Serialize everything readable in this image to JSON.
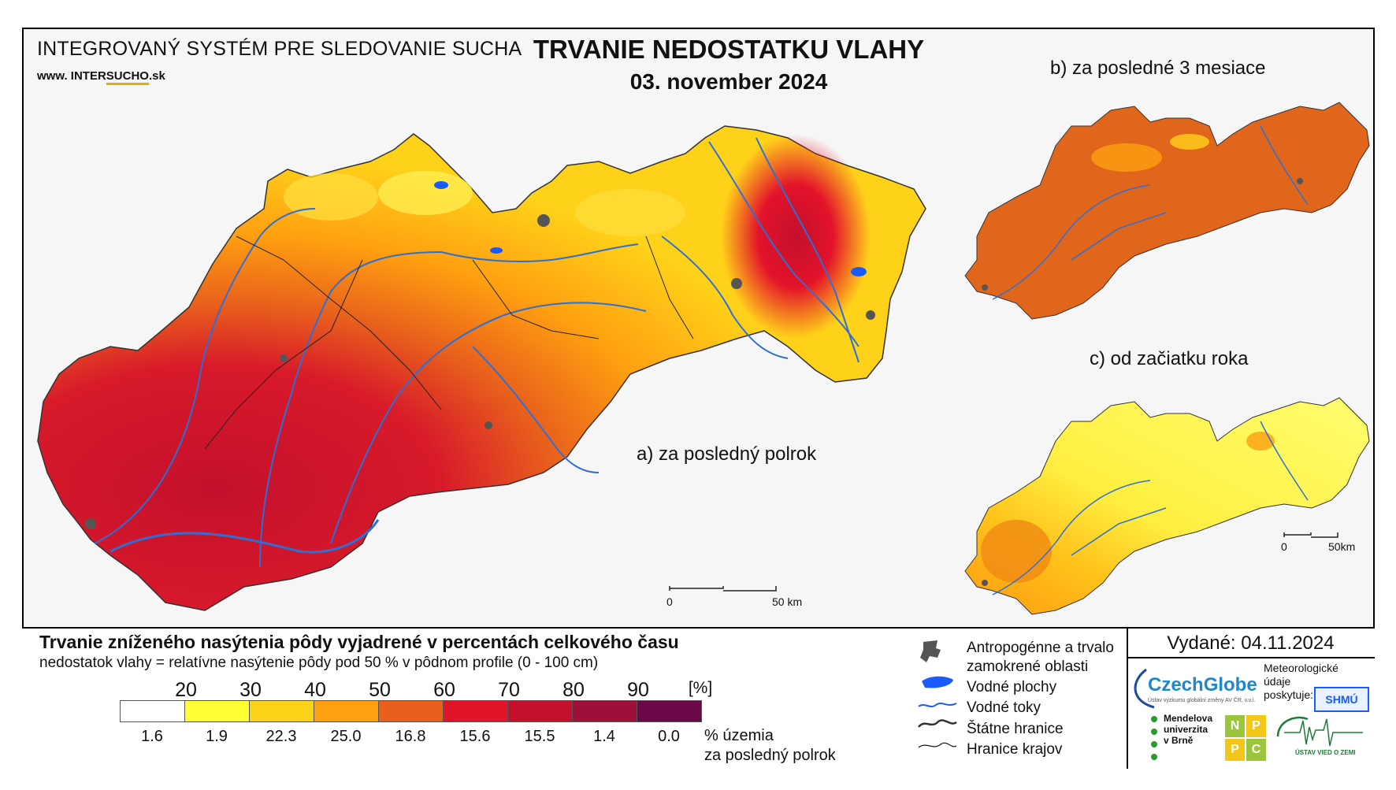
{
  "header": {
    "system_title": "INTEGROVANÝ SYSTÉM PRE SLEDOVANIE SUCHA",
    "website_prefix": "www.",
    "website_name_a": "INTER",
    "website_name_b": "SUCHO",
    "website_suffix": ".sk",
    "map_title": "TRVANIE NEDOSTATKU VLAHY",
    "map_date": "03. november 2024"
  },
  "panels": {
    "a_label": "a) za posledný polrok",
    "b_label": "b) za posledné 3 mesiace",
    "c_label": "c) od začiatku roka"
  },
  "scalebars": {
    "main_start": "0",
    "main_end": "50 km",
    "small_start": "0",
    "small_end": "50km"
  },
  "legend": {
    "title": "Trvanie zníženého nasýtenia pôdy vyjadrené v percentách celkového času",
    "subtitle": "nedostatok vlahy = relatívne nasýtenie pôdy pod 50 % v pôdnom profile (0 - 100 cm)",
    "thresholds": [
      "20",
      "30",
      "40",
      "50",
      "60",
      "70",
      "80",
      "90",
      "[%]"
    ],
    "classes": [
      {
        "color": "#ffffff",
        "share": "1.6"
      },
      {
        "color": "#ffff33",
        "share": "1.9"
      },
      {
        "color": "#ffd21a",
        "share": "22.3"
      },
      {
        "color": "#ffa010",
        "share": "25.0"
      },
      {
        "color": "#e8601c",
        "share": "16.8"
      },
      {
        "color": "#e3132a",
        "share": "15.6"
      },
      {
        "color": "#c4102c",
        "share": "15.5"
      },
      {
        "color": "#9e0f39",
        "share": "1.4"
      },
      {
        "color": "#6a0848",
        "share": "0.0"
      }
    ],
    "share_note_line1": "% územia",
    "share_note_line2": "za posledný polrok"
  },
  "symbols": {
    "anthropogenic_1": "Antropogénne a trvalo",
    "anthropogenic_2": "zamokrené oblasti",
    "water_bodies": "Vodné plochy",
    "rivers": "Vodné toky",
    "state_border": "Štátne hranice",
    "region_border": "Hranice krajov"
  },
  "issued": "Vydané: 04.11.2024",
  "credits": {
    "czechglobe": "CzechGlobe",
    "czechglobe_sub": "Ústav výzkumu globální změny AV ČR, v.v.i.",
    "meteo_1": "Meteorologické",
    "meteo_2": "údaje",
    "meteo_3": "poskytuje:",
    "shmu": "SHMÚ",
    "mendel_1": "Mendelova",
    "mendel_2": "univerzita",
    "mendel_3": "v Brně",
    "nppc": [
      "N",
      "P",
      "P",
      "C"
    ],
    "uvz": "ÚSTAV VIED O ZEMI"
  },
  "colors": {
    "river": "#2d6fd6",
    "water": "#1a5bff",
    "urban": "#555555"
  }
}
